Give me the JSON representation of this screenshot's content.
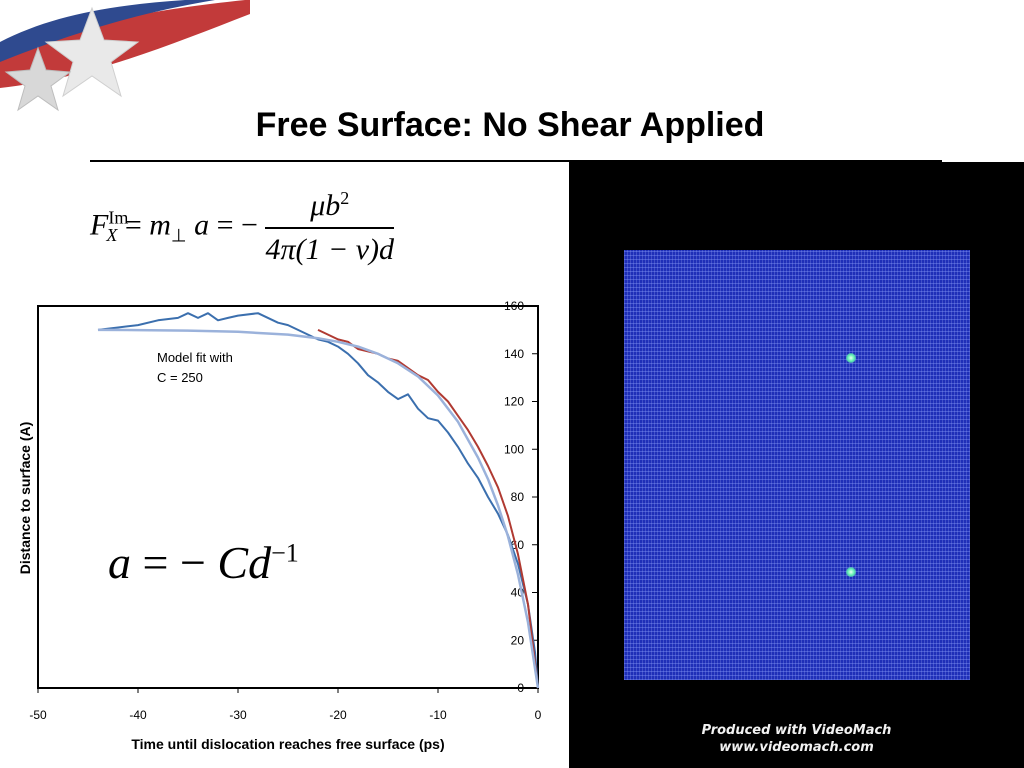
{
  "slide": {
    "title": "Free Surface: No Shear Applied"
  },
  "formula_force": {
    "F": "F",
    "F_sup": "Im",
    "F_sub": "X",
    "eq1": "=",
    "m": "m",
    "m_sub": "⊥",
    "a": "a",
    "eq2": "= −",
    "numerator": "μb",
    "numerator_sup": "2",
    "denominator": "4π(1 − ν)d"
  },
  "formula_accel": {
    "lhs": "a",
    "eq": "= −",
    "rhs": "Cd",
    "rhs_sup": "−1"
  },
  "colors": {
    "axis": "#000000",
    "series_blue": "#3b6fae",
    "series_red": "#b03a32",
    "series_fit": "#9bb2db",
    "video_background": "#000000",
    "lattice": "#1f2fb8"
  },
  "chart_data": {
    "type": "line",
    "xlabel": "Time until dislocation reaches free surface (ps)",
    "ylabel": "Distance to surface (A)",
    "xlim": [
      -50,
      0
    ],
    "ylim": [
      0,
      160
    ],
    "x_ticks": [
      "-50",
      "-40",
      "-30",
      "-20",
      "-10",
      "0"
    ],
    "y_ticks": [
      "0",
      "20",
      "40",
      "60",
      "80",
      "100",
      "120",
      "140",
      "160"
    ],
    "annotation": [
      "Model fit with",
      "C = 250"
    ],
    "legend": "none",
    "grid": false,
    "series": [
      {
        "color": "#3b6fae",
        "x": [
          -44,
          -42,
          -40,
          -38,
          -36,
          -35,
          -34,
          -33,
          -32,
          -31,
          -30,
          -28,
          -26,
          -25,
          -23,
          -22,
          -21,
          -20,
          -19,
          -18,
          -17,
          -16,
          -15,
          -14,
          -13,
          -12,
          -11,
          -10,
          -9,
          -8,
          -7,
          -6,
          -5,
          -4,
          -3,
          -2,
          -1,
          -0.3,
          0
        ],
        "y": [
          150,
          151,
          152,
          154,
          155,
          157,
          155,
          157,
          154,
          155,
          156,
          157,
          153,
          152,
          148,
          146,
          145,
          143,
          140,
          136,
          131,
          128,
          124,
          121,
          123,
          117,
          113,
          112,
          107,
          101,
          94,
          88,
          80,
          73,
          64,
          52,
          35,
          15,
          0
        ]
      },
      {
        "color": "#b03a32",
        "x": [
          -22,
          -21,
          -20,
          -19,
          -18,
          -17,
          -16,
          -15,
          -14,
          -13,
          -12,
          -11,
          -10,
          -9,
          -8,
          -7,
          -6,
          -5,
          -4,
          -3,
          -2,
          -1,
          0
        ],
        "y": [
          150,
          148,
          146,
          145,
          142,
          141,
          140,
          138,
          137,
          134,
          131,
          129,
          124,
          120,
          114,
          108,
          101,
          93,
          84,
          72,
          56,
          35,
          0
        ]
      },
      {
        "color": "#9bb2db",
        "x": [
          -44,
          -40,
          -35,
          -30,
          -25,
          -22,
          -20,
          -18,
          -16,
          -14,
          -12,
          -10,
          -8,
          -6,
          -5,
          -4,
          -3,
          -2,
          -1,
          0
        ],
        "y": [
          150,
          149.9,
          149.7,
          149.2,
          148,
          146.5,
          145,
          143,
          140,
          136,
          130.5,
          122.5,
          111.5,
          96.5,
          87.5,
          76.5,
          63.5,
          47.5,
          27.5,
          0
        ]
      }
    ]
  },
  "video": {
    "watermark_line1": "Produced with VideoMach",
    "watermark_line2": "www.videomach.com"
  }
}
